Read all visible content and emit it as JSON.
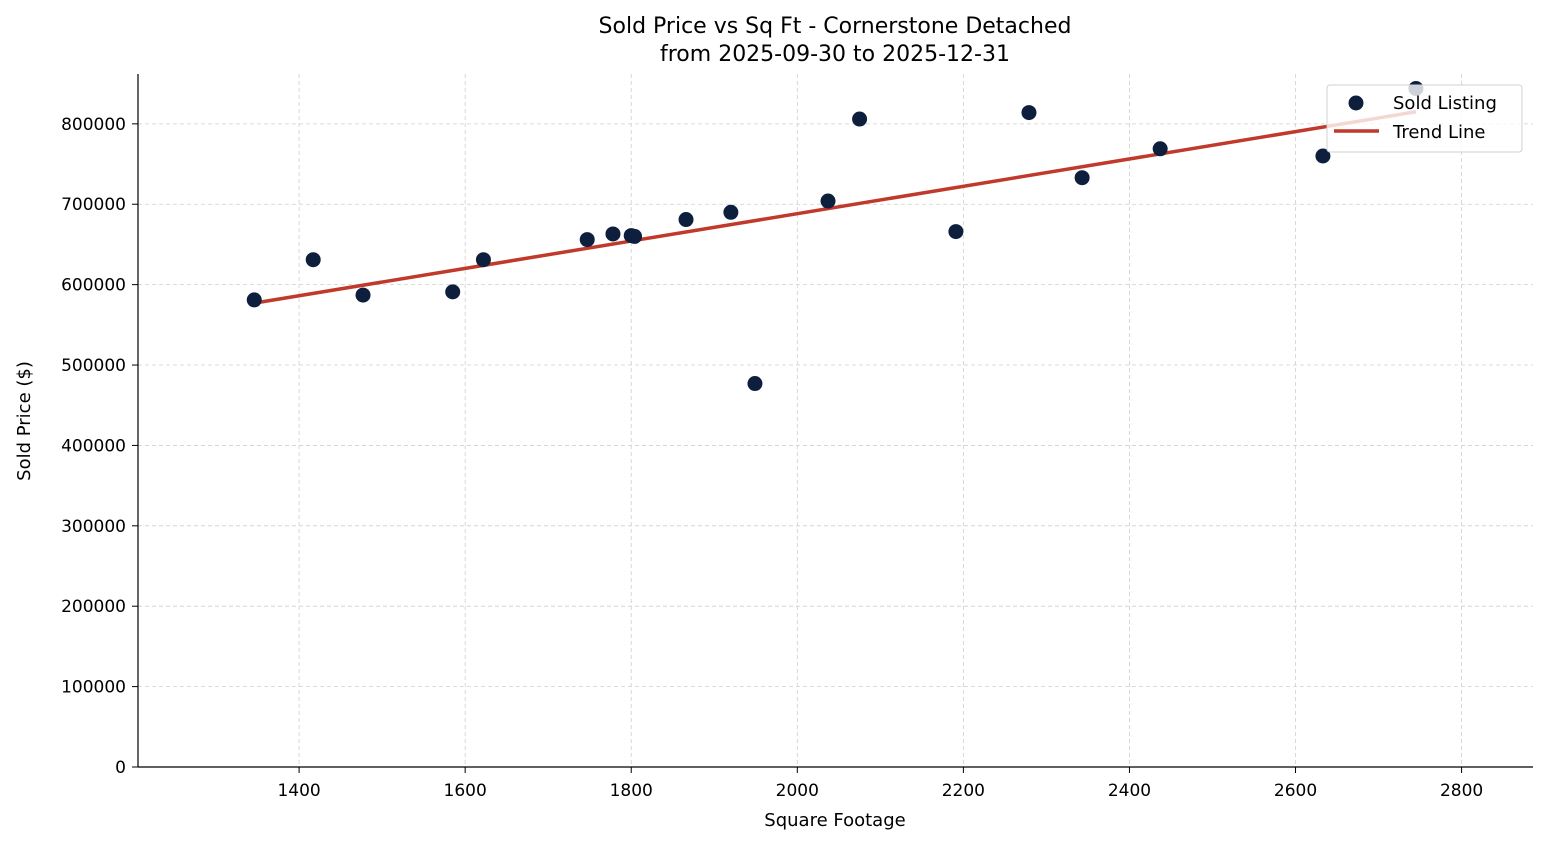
{
  "chart_data": {
    "type": "scatter",
    "title": "Sold Price vs Sq Ft - Cornerstone Detached",
    "subtitle": "from 2025-09-30 to 2025-12-31",
    "xlabel": "Square Footage",
    "ylabel": "Sold Price ($)",
    "xlim": [
      1206,
      2886
    ],
    "ylim": [
      0,
      862000
    ],
    "xticks": [
      1400,
      1600,
      1800,
      2000,
      2200,
      2400,
      2600,
      2800
    ],
    "yticks": [
      0,
      100000,
      200000,
      300000,
      400000,
      500000,
      600000,
      700000,
      800000
    ],
    "grid": true,
    "legend_position": "top-right",
    "series": [
      {
        "name": "Sold Listing",
        "type": "scatter",
        "color": "#0d1f3c",
        "points": [
          [
            1346,
            581000
          ],
          [
            1417,
            631000
          ],
          [
            1477,
            587000
          ],
          [
            1585,
            591000
          ],
          [
            1622,
            631000
          ],
          [
            1747,
            656000
          ],
          [
            1778,
            663000
          ],
          [
            1800,
            661000
          ],
          [
            1804,
            660000
          ],
          [
            1866,
            681000
          ],
          [
            1920,
            690000
          ],
          [
            1949,
            477000
          ],
          [
            2037,
            704000
          ],
          [
            2075,
            806000
          ],
          [
            2191,
            666000
          ],
          [
            2279,
            814000
          ],
          [
            2343,
            733000
          ],
          [
            2437,
            769000
          ],
          [
            2633,
            760000
          ],
          [
            2745,
            844000
          ]
        ]
      },
      {
        "name": "Trend Line",
        "type": "line",
        "color": "#c0392b",
        "points": [
          [
            1346,
            577000
          ],
          [
            2745,
            815000
          ]
        ]
      }
    ]
  }
}
